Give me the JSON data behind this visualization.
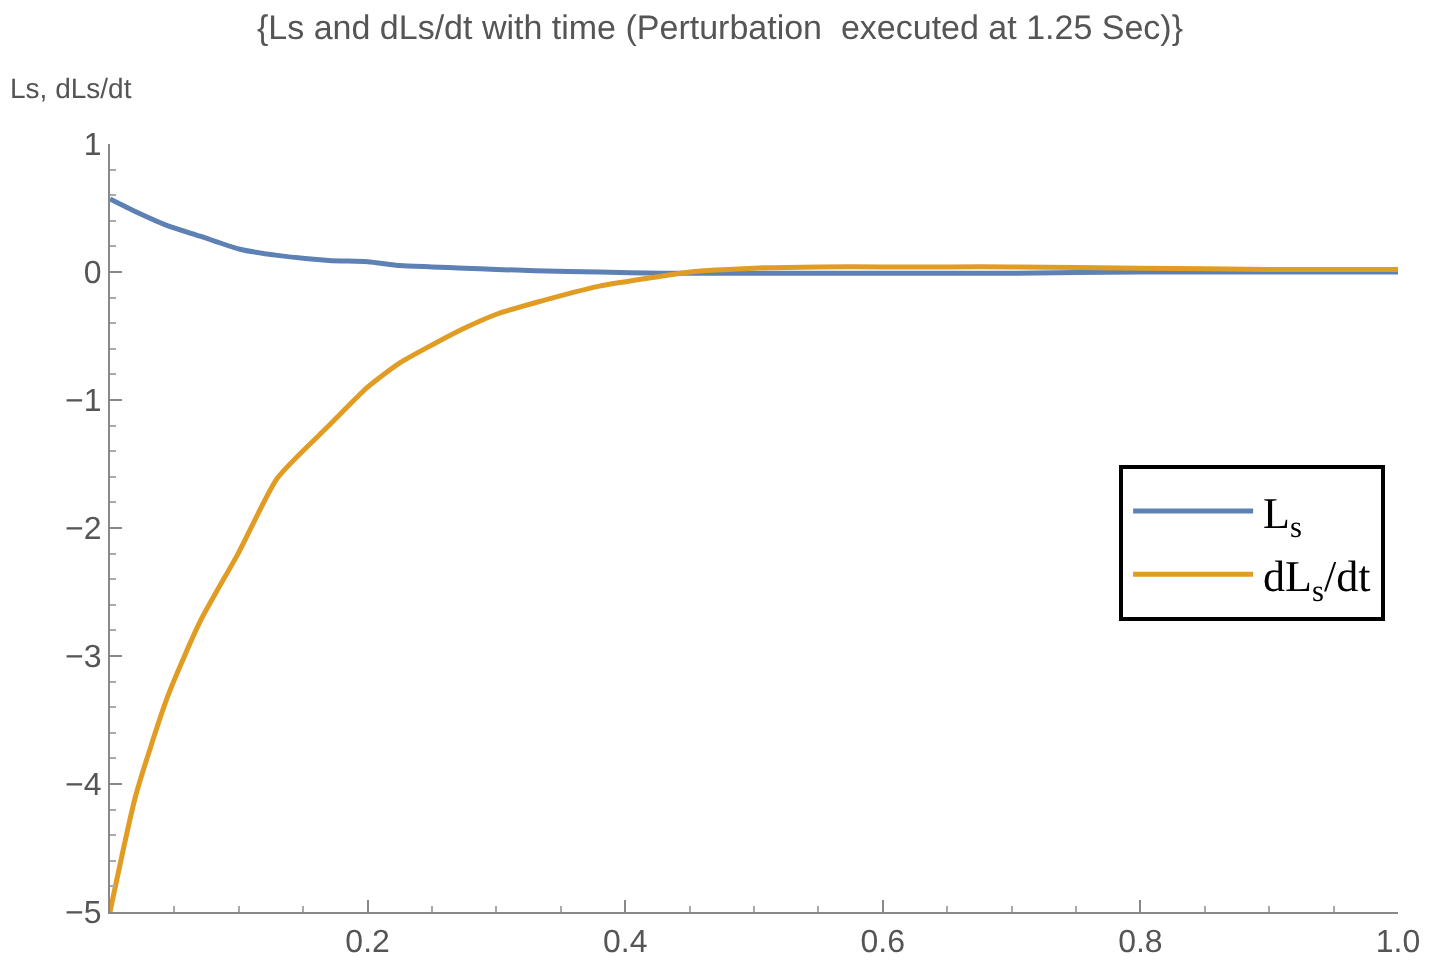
{
  "chart_data": {
    "type": "line",
    "title": "{Ls and dLs/dt with time (Perturbation  executed at 1.25 Sec)}",
    "ylabel": "Ls, dLs/dt",
    "x": [
      0,
      0.02,
      0.045,
      0.07,
      0.1,
      0.13,
      0.17,
      0.2,
      0.225,
      0.25,
      0.275,
      0.3,
      0.33,
      0.38,
      0.43,
      0.45,
      0.5,
      0.55,
      0.6,
      0.65,
      0.7,
      0.8,
      0.9,
      1.0
    ],
    "series": [
      {
        "name": "L$_{s}$",
        "color": "#5e81b5",
        "values": [
          0.57,
          0.47,
          0.36,
          0.28,
          0.18,
          0.13,
          0.09,
          0.08,
          0.05,
          0.04,
          0.03,
          0.02,
          0.01,
          0.0,
          -0.01,
          -0.01,
          -0.01,
          -0.01,
          -0.01,
          -0.01,
          -0.01,
          0.0,
          0.0,
          0.0
        ]
      },
      {
        "name": "dL$_{s}$/dt",
        "color": "#e19c24",
        "values": [
          -5,
          -4.09,
          -3.31,
          -2.73,
          -2.19,
          -1.61,
          -1.2,
          -0.9,
          -0.71,
          -0.57,
          -0.44,
          -0.33,
          -0.24,
          -0.11,
          -0.03,
          0.0,
          0.03,
          0.04,
          0.04,
          0.04,
          0.04,
          0.03,
          0.02,
          0.02
        ]
      }
    ],
    "xlim": [
      0,
      1.0
    ],
    "ylim": [
      -5,
      1
    ],
    "xticks": [
      0.2,
      0.4,
      0.6,
      0.8,
      {
        "value": 1.0,
        "label": "1.0"
      }
    ],
    "yticks": [
      {
        "value": -5,
        "label": "−5"
      },
      {
        "value": -4,
        "label": "−4"
      },
      {
        "value": -3,
        "label": "−3"
      },
      {
        "value": -2,
        "label": "−2"
      },
      {
        "value": -1,
        "label": "−1"
      },
      0,
      1
    ],
    "legend": "right",
    "line_style": "solid",
    "marker": "none"
  }
}
